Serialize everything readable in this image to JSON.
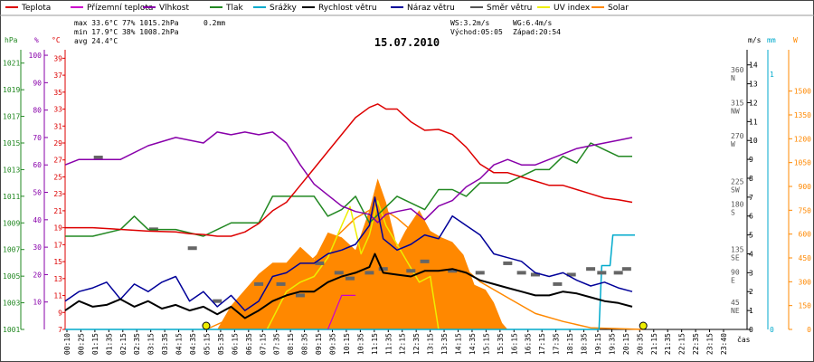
{
  "chart_data": {
    "type": "line",
    "title": "15.07.2010",
    "legend": [
      {
        "name": "Teplota",
        "color": "#dd0000"
      },
      {
        "name": "Přízemní teplota",
        "color": "#cc00cc"
      },
      {
        "name": "Vlhkost",
        "color": "#8800aa"
      },
      {
        "name": "Tlak",
        "color": "#228822"
      },
      {
        "name": "Srážky",
        "color": "#00aacc"
      },
      {
        "name": "Rychlost větru",
        "color": "#000000"
      },
      {
        "name": "Náraz větru",
        "color": "#000099"
      },
      {
        "name": "Směr větru",
        "color": "#555555"
      },
      {
        "name": "UV index",
        "color": "#eeee00"
      },
      {
        "name": "Solar",
        "color": "#ff8800"
      }
    ],
    "stats": {
      "max_line": "max 33.6°C  77%  1015.2hPa",
      "max_rain": "0.2mm",
      "min_line": "min 17.9°C  38%  1008.2hPa",
      "avg_line": "avg 24.4°C",
      "ws": "WS:3.2m/s",
      "wg": "WG:6.4m/s",
      "sunrise": "Východ:05:05",
      "sunset": "Západ:20:54"
    },
    "axes": {
      "hpa": {
        "label": "hPa",
        "color": "#228822",
        "ticks": [
          "1021",
          "1019",
          "1017",
          "1015",
          "1013",
          "1011",
          "1009",
          "1007",
          "1005",
          "1003",
          "1001"
        ]
      },
      "pct": {
        "label": "%",
        "color": "#8800aa",
        "ticks": [
          "100",
          "90",
          "80",
          "70",
          "60",
          "50",
          "40",
          "30",
          "20",
          "10"
        ]
      },
      "temp": {
        "label": "°C",
        "color": "#dd0000",
        "ticks": [
          "39",
          "37",
          "35",
          "33",
          "31",
          "29",
          "27",
          "25",
          "23",
          "21",
          "19",
          "17",
          "15",
          "13",
          "11",
          "9",
          "7"
        ]
      },
      "ms": {
        "label": "m/s",
        "color": "#000000",
        "ticks": [
          "0",
          "1",
          "2",
          "3",
          "4",
          "5",
          "6",
          "7",
          "8",
          "9",
          "10",
          "11",
          "12",
          "13",
          "14"
        ]
      },
      "mm": {
        "label": "mm",
        "color": "#00aacc",
        "ticks": [
          "0",
          "1"
        ]
      },
      "w": {
        "label": "W",
        "color": "#ff8800",
        "ticks": [
          "0",
          "150",
          "300",
          "450",
          "600",
          "750",
          "900",
          "1050",
          "1200",
          "1350",
          "1500"
        ]
      },
      "dir": [
        {
          "deg": "360",
          "name": "N",
          "ms": 13.5
        },
        {
          "deg": "315",
          "name": "NW",
          "ms": 11.75
        },
        {
          "deg": "270",
          "name": "W",
          "ms": 10
        },
        {
          "deg": "225",
          "name": "SW",
          "ms": 7.6
        },
        {
          "deg": "180",
          "name": "S",
          "ms": 6.4
        },
        {
          "deg": "135",
          "name": "SE",
          "ms": 4
        },
        {
          "deg": "90",
          "name": "E",
          "ms": 2.8
        },
        {
          "deg": "45",
          "name": "NE",
          "ms": 1.2
        }
      ]
    },
    "x_ticks": [
      "00:10",
      "00:25",
      "01:15",
      "01:35",
      "02:15",
      "02:35",
      "03:15",
      "03:35",
      "04:15",
      "04:35",
      "05:15",
      "05:35",
      "06:15",
      "06:35",
      "07:15",
      "07:35",
      "08:15",
      "08:35",
      "09:15",
      "09:35",
      "10:15",
      "10:35",
      "11:15",
      "11:35",
      "12:15",
      "12:35",
      "13:15",
      "13:35",
      "14:15",
      "14:35",
      "15:15",
      "15:35",
      "16:15",
      "16:35",
      "17:15",
      "17:35",
      "18:15",
      "18:35",
      "19:15",
      "19:35",
      "20:15",
      "20:35",
      "21:15",
      "21:35",
      "22:15",
      "22:35",
      "23:15",
      "23:40"
    ],
    "x_label": "čas",
    "sunrise_hour": 5.1,
    "sunset_hour": 20.9,
    "series": {
      "temperature": [
        [
          0,
          19
        ],
        [
          1,
          19
        ],
        [
          2,
          18.8
        ],
        [
          3,
          18.6
        ],
        [
          4,
          18.5
        ],
        [
          4.5,
          18.3
        ],
        [
          5,
          18.2
        ],
        [
          5.5,
          18
        ],
        [
          6,
          18
        ],
        [
          6.5,
          18.5
        ],
        [
          7,
          19.5
        ],
        [
          7.5,
          21
        ],
        [
          8,
          22
        ],
        [
          8.5,
          24
        ],
        [
          9,
          26
        ],
        [
          9.5,
          28
        ],
        [
          10,
          30
        ],
        [
          10.5,
          32
        ],
        [
          11,
          33.2
        ],
        [
          11.3,
          33.6
        ],
        [
          11.6,
          33
        ],
        [
          12,
          33
        ],
        [
          12.5,
          31.5
        ],
        [
          13,
          30.5
        ],
        [
          13.5,
          30.6
        ],
        [
          14,
          30
        ],
        [
          14.5,
          28.5
        ],
        [
          15,
          26.5
        ],
        [
          15.5,
          25.5
        ],
        [
          16,
          25.5
        ],
        [
          16.5,
          25
        ],
        [
          17,
          24.5
        ],
        [
          17.5,
          24
        ],
        [
          18,
          24
        ],
        [
          18.5,
          23.5
        ],
        [
          19,
          23
        ],
        [
          19.5,
          22.5
        ],
        [
          20,
          22.3
        ],
        [
          20.5,
          22
        ]
      ],
      "humidity": [
        [
          0,
          60
        ],
        [
          0.5,
          62
        ],
        [
          1,
          62
        ],
        [
          2,
          62
        ],
        [
          3,
          67
        ],
        [
          4,
          70
        ],
        [
          5,
          68
        ],
        [
          5.5,
          72
        ],
        [
          6,
          71
        ],
        [
          6.5,
          72
        ],
        [
          7,
          71
        ],
        [
          7.5,
          72
        ],
        [
          8,
          68
        ],
        [
          8.5,
          60
        ],
        [
          9,
          53
        ],
        [
          9.5,
          49
        ],
        [
          10,
          45
        ],
        [
          10.5,
          43
        ],
        [
          11,
          42
        ],
        [
          11.3,
          39
        ],
        [
          11.6,
          42
        ],
        [
          12,
          43
        ],
        [
          12.5,
          44
        ],
        [
          13,
          40
        ],
        [
          13.5,
          45
        ],
        [
          14,
          47
        ],
        [
          14.5,
          52
        ],
        [
          15,
          55
        ],
        [
          15.5,
          60
        ],
        [
          16,
          62
        ],
        [
          16.5,
          60
        ],
        [
          17,
          60
        ],
        [
          17.5,
          62
        ],
        [
          18,
          64
        ],
        [
          18.5,
          66
        ],
        [
          19,
          67
        ],
        [
          19.5,
          68
        ],
        [
          20,
          69
        ],
        [
          20.5,
          70
        ]
      ],
      "pressure": [
        [
          0,
          1008
        ],
        [
          1,
          1008
        ],
        [
          2,
          1008.5
        ],
        [
          2.5,
          1009.5
        ],
        [
          3,
          1008.5
        ],
        [
          4,
          1008.5
        ],
        [
          5,
          1008
        ],
        [
          6,
          1009
        ],
        [
          7,
          1009
        ],
        [
          7.5,
          1011
        ],
        [
          8,
          1011
        ],
        [
          9,
          1011
        ],
        [
          9.5,
          1009.5
        ],
        [
          10,
          1010
        ],
        [
          10.5,
          1011
        ],
        [
          11,
          1009
        ],
        [
          11.5,
          1010
        ],
        [
          12,
          1011
        ],
        [
          13,
          1010
        ],
        [
          13.5,
          1011.5
        ],
        [
          14,
          1011.5
        ],
        [
          14.5,
          1011
        ],
        [
          15,
          1012
        ],
        [
          15.5,
          1012
        ],
        [
          16,
          1012
        ],
        [
          17,
          1013
        ],
        [
          17.5,
          1013
        ],
        [
          18,
          1014
        ],
        [
          18.5,
          1013.5
        ],
        [
          19,
          1015
        ],
        [
          19.5,
          1014.5
        ],
        [
          20,
          1014
        ],
        [
          20.5,
          1014
        ]
      ],
      "wind_speed": [
        [
          0,
          1
        ],
        [
          0.5,
          1.5
        ],
        [
          1,
          1.2
        ],
        [
          1.5,
          1.3
        ],
        [
          2,
          1.6
        ],
        [
          2.5,
          1.2
        ],
        [
          3,
          1.5
        ],
        [
          3.5,
          1.1
        ],
        [
          4,
          1.3
        ],
        [
          4.5,
          1
        ],
        [
          5,
          1.2
        ],
        [
          5.5,
          0.8
        ],
        [
          6,
          1.2
        ],
        [
          6.5,
          0.6
        ],
        [
          7,
          1
        ],
        [
          7.5,
          1.5
        ],
        [
          8,
          1.8
        ],
        [
          8.5,
          2
        ],
        [
          9,
          2
        ],
        [
          9.5,
          2.5
        ],
        [
          10,
          2.8
        ],
        [
          10.5,
          3
        ],
        [
          11,
          3.3
        ],
        [
          11.2,
          4
        ],
        [
          11.5,
          3
        ],
        [
          12,
          2.9
        ],
        [
          12.5,
          2.8
        ],
        [
          13,
          3.1
        ],
        [
          13.5,
          3.1
        ],
        [
          14,
          3.2
        ],
        [
          14.5,
          3
        ],
        [
          15,
          2.6
        ],
        [
          15.5,
          2.4
        ],
        [
          16,
          2.2
        ],
        [
          16.5,
          2
        ],
        [
          17,
          1.8
        ],
        [
          17.5,
          1.8
        ],
        [
          18,
          2
        ],
        [
          18.5,
          1.9
        ],
        [
          19,
          1.7
        ],
        [
          19.5,
          1.5
        ],
        [
          20,
          1.4
        ],
        [
          20.5,
          1.2
        ]
      ],
      "wind_gust": [
        [
          0,
          1.5
        ],
        [
          0.5,
          2
        ],
        [
          1,
          2.2
        ],
        [
          1.5,
          2.5
        ],
        [
          2,
          1.6
        ],
        [
          2.5,
          2.4
        ],
        [
          3,
          2
        ],
        [
          3.5,
          2.5
        ],
        [
          4,
          2.8
        ],
        [
          4.5,
          1.5
        ],
        [
          5,
          2
        ],
        [
          5.5,
          1.2
        ],
        [
          6,
          1.8
        ],
        [
          6.5,
          1
        ],
        [
          7,
          1.5
        ],
        [
          7.5,
          2.8
        ],
        [
          8,
          3
        ],
        [
          8.5,
          3.5
        ],
        [
          9,
          3.5
        ],
        [
          9.5,
          4
        ],
        [
          10,
          4.2
        ],
        [
          10.5,
          4.5
        ],
        [
          11,
          5.5
        ],
        [
          11.2,
          7
        ],
        [
          11.5,
          4.8
        ],
        [
          12,
          4.2
        ],
        [
          12.5,
          4.5
        ],
        [
          13,
          5
        ],
        [
          13.5,
          4.8
        ],
        [
          14,
          6
        ],
        [
          14.5,
          5.5
        ],
        [
          15,
          5
        ],
        [
          15.5,
          4
        ],
        [
          16,
          3.8
        ],
        [
          16.5,
          3.6
        ],
        [
          17,
          3
        ],
        [
          17.5,
          2.8
        ],
        [
          18,
          3
        ],
        [
          18.5,
          2.6
        ],
        [
          19,
          2.3
        ],
        [
          19.5,
          2.5
        ],
        [
          20,
          2.2
        ],
        [
          20.5,
          2
        ]
      ],
      "wind_dir_bars": [
        [
          1.2,
          9.1
        ],
        [
          3.2,
          5.3
        ],
        [
          4.6,
          4.3
        ],
        [
          5.5,
          1.5
        ],
        [
          7,
          2.4
        ],
        [
          7.8,
          2.4
        ],
        [
          8.5,
          1.8
        ],
        [
          9.2,
          3.5
        ],
        [
          9.9,
          3
        ],
        [
          10.3,
          2.7
        ],
        [
          11,
          3
        ],
        [
          11.5,
          3.2
        ],
        [
          12.5,
          3.1
        ],
        [
          13,
          3.6
        ],
        [
          14,
          3.1
        ],
        [
          15,
          3
        ],
        [
          16,
          3.5
        ],
        [
          16.5,
          3
        ],
        [
          17,
          2.9
        ],
        [
          17.8,
          2.4
        ],
        [
          18.3,
          2.9
        ],
        [
          19,
          3.2
        ],
        [
          19.4,
          3
        ],
        [
          20,
          3
        ],
        [
          20.3,
          3.2
        ]
      ],
      "rain": [
        [
          0,
          0
        ],
        [
          19.3,
          0
        ],
        [
          19.4,
          0.25
        ],
        [
          19.7,
          0.25
        ],
        [
          19.8,
          0.37
        ],
        [
          20.6,
          0.37
        ]
      ],
      "solar": [
        [
          5.1,
          0
        ],
        [
          7,
          150
        ],
        [
          8,
          300
        ],
        [
          9,
          450
        ],
        [
          10.5,
          700
        ],
        [
          11.3,
          780
        ],
        [
          12,
          700
        ],
        [
          13,
          550
        ],
        [
          14,
          450
        ],
        [
          15,
          300
        ],
        [
          16,
          200
        ],
        [
          17,
          100
        ],
        [
          18,
          50
        ],
        [
          19,
          10
        ],
        [
          20.9,
          0
        ]
      ],
      "solar_area": [
        [
          5.5,
          0
        ],
        [
          6,
          150
        ],
        [
          6.5,
          250
        ],
        [
          7,
          350
        ],
        [
          7.5,
          420
        ],
        [
          8,
          420
        ],
        [
          8.5,
          520
        ],
        [
          9,
          440
        ],
        [
          9.5,
          610
        ],
        [
          10,
          580
        ],
        [
          10.5,
          500
        ],
        [
          11,
          750
        ],
        [
          11.3,
          950
        ],
        [
          11.6,
          800
        ],
        [
          12,
          520
        ],
        [
          12.3,
          620
        ],
        [
          12.8,
          750
        ],
        [
          13.2,
          620
        ],
        [
          13.6,
          580
        ],
        [
          14,
          550
        ],
        [
          14.4,
          470
        ],
        [
          14.8,
          280
        ],
        [
          15.2,
          250
        ],
        [
          15.5,
          170
        ],
        [
          15.8,
          40
        ],
        [
          16,
          0
        ]
      ],
      "uv_index": [
        [
          7.3,
          0
        ],
        [
          8,
          2
        ],
        [
          8.5,
          2.5
        ],
        [
          9,
          2.8
        ],
        [
          9.5,
          3.8
        ],
        [
          10,
          5.5
        ],
        [
          10.3,
          6.5
        ],
        [
          10.7,
          4
        ],
        [
          11,
          5
        ],
        [
          11.3,
          6.8
        ],
        [
          11.6,
          5.5
        ],
        [
          12,
          4.5
        ],
        [
          12.4,
          3.5
        ],
        [
          12.8,
          2.5
        ],
        [
          13.2,
          2.8
        ],
        [
          13.5,
          0
        ]
      ],
      "ground_temp": [
        [
          9.5,
          0
        ],
        [
          10,
          1.8
        ],
        [
          10.5,
          1.8
        ]
      ]
    }
  }
}
